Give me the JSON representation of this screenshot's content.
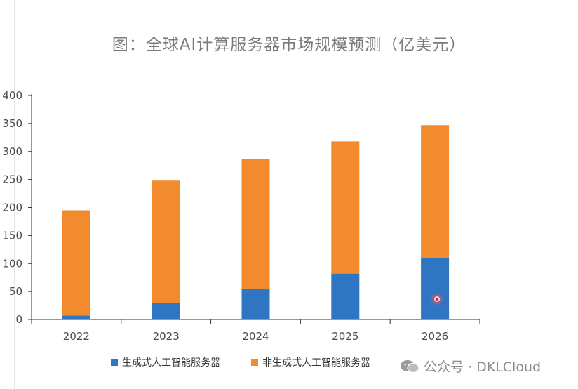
{
  "chart_data": {
    "type": "bar",
    "stacked": true,
    "title": "图：全球AI计算服务器市场规模预测（亿美元）",
    "categories": [
      "2022",
      "2023",
      "2024",
      "2025",
      "2026"
    ],
    "series": [
      {
        "name": "生成式人工智能服务器",
        "values": [
          7,
          30,
          54,
          82,
          110
        ],
        "color": "#2e75c2"
      },
      {
        "name": "非生成式人工智能服务器",
        "values": [
          188,
          218,
          233,
          236,
          237
        ],
        "color": "#f28a2e"
      }
    ],
    "ylim": [
      0,
      400
    ],
    "yticks": [
      "0",
      "50",
      "100",
      "150",
      "200",
      "250",
      "300",
      "350",
      "400"
    ],
    "xlabel": "",
    "ylabel": "",
    "grid": false,
    "legend_position": "bottom"
  },
  "watermark": {
    "text": "公众号 · DKLCloud",
    "icon": "wechat-icon"
  }
}
